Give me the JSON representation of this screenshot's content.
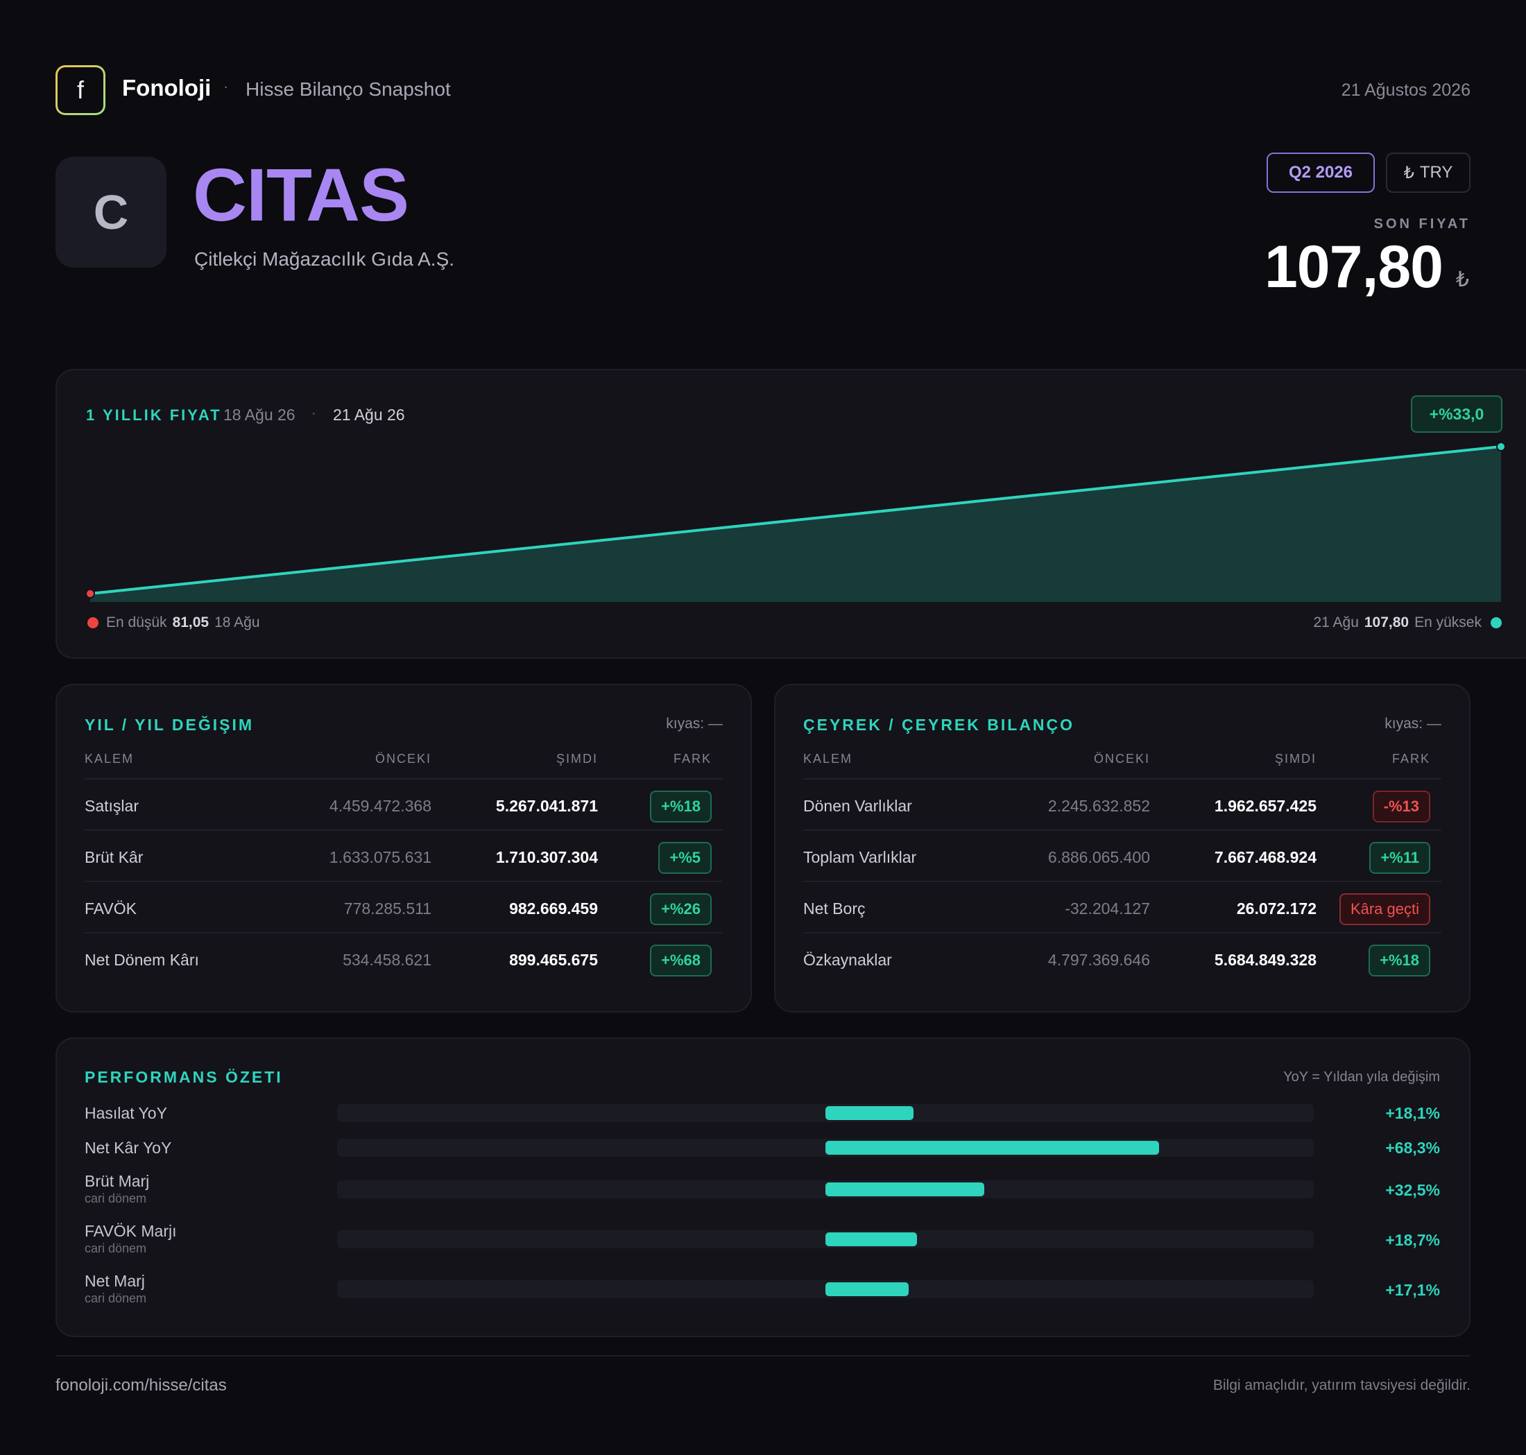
{
  "header": {
    "logo_letter": "f",
    "brand": "Fonoloji",
    "separator": "·",
    "subtitle": "Hisse Bilanço Snapshot",
    "date": "21 Ağustos 2026"
  },
  "stock": {
    "avatar_letter": "C",
    "ticker": "CITAS",
    "company": "Çitlekçi Mağazacılık Gıda A.Ş.",
    "period": "Q2 2026",
    "currency_symbol": "₺",
    "currency": "TRY",
    "last_price_label": "SON FIYAT",
    "last_price": "107,80",
    "last_price_currency": "₺"
  },
  "price_chart": {
    "title": "1 YILLIK FIYAT",
    "from": "18 Ağu 26",
    "dot": "·",
    "to": "21 Ağu 26",
    "change": "+%33,0",
    "low_label": "En düşük",
    "low_value": "81,05",
    "low_date": "18 Ağu",
    "high_date": "21 Ağu",
    "high_value": "107,80",
    "high_label": "En yüksek",
    "colors": {
      "line": "#2fd4bd",
      "area": "#183a39",
      "low": "#ef4444",
      "high": "#2fd4bd"
    }
  },
  "chart_data": {
    "type": "area",
    "x": [
      "18 Ağu 26",
      "21 Ağu 26"
    ],
    "series": [
      {
        "values": [
          81.05,
          107.8
        ]
      }
    ]
  },
  "yoy": {
    "title": "YIL / YIL DEĞIŞIM",
    "compare_label": "kıyas:",
    "compare_value": "—",
    "columns": [
      "KALEM",
      "ÖNCEKI",
      "ŞIMDI",
      "FARK"
    ],
    "rows": [
      {
        "name": "Satışlar",
        "prev": "4.459.472.368",
        "now": "5.267.041.871",
        "diff": "+%18"
      },
      {
        "name": "Brüt Kâr",
        "prev": "1.633.075.631",
        "now": "1.710.307.304",
        "diff": "+%5"
      },
      {
        "name": "FAVÖK",
        "prev": "778.285.511",
        "now": "982.669.459",
        "diff": "+%26"
      },
      {
        "name": "Net Dönem Kârı",
        "prev": "534.458.621",
        "now": "899.465.675",
        "diff": "+%68"
      }
    ]
  },
  "qoq": {
    "title": "ÇEYREK / ÇEYREK BILANÇO",
    "compare_label": "kıyas:",
    "compare_value": "—",
    "columns": [
      "KALEM",
      "ÖNCEKI",
      "ŞIMDI",
      "FARK"
    ],
    "rows": [
      {
        "name": "Dönen Varlıklar",
        "prev": "2.245.632.852",
        "now": "1.962.657.425",
        "diff": "-%13"
      },
      {
        "name": "Toplam Varlıklar",
        "prev": "6.886.065.400",
        "now": "7.667.468.924",
        "diff": "+%11"
      },
      {
        "name": "Net Borç",
        "prev": "-32.204.127",
        "now": "26.072.172",
        "diff": "Kâra geçti"
      },
      {
        "name": "Özkaynaklar",
        "prev": "4.797.369.646",
        "now": "5.684.849.328",
        "diff": "+%18"
      }
    ]
  },
  "performance": {
    "title": "PERFORMANS ÖZETI",
    "note": "YoY = Yıldan yıla değişim",
    "rows": [
      {
        "label": "Hasılat YoY",
        "sub": "",
        "value": "+18,1%",
        "pct": 18.1
      },
      {
        "label": "Net Kâr YoY",
        "sub": "",
        "value": "+68,3%",
        "pct": 68.3
      },
      {
        "label": "Brüt Marj",
        "sub": "cari dönem",
        "value": "+32,5%",
        "pct": 32.5
      },
      {
        "label": "FAVÖK Marjı",
        "sub": "cari dönem",
        "value": "+18,7%",
        "pct": 18.7
      },
      {
        "label": "Net Marj",
        "sub": "cari dönem",
        "value": "+17,1%",
        "pct": 17.1
      }
    ]
  },
  "footer": {
    "url": "fonoloji.com/hisse/citas",
    "disclaimer": "Bilgi amaçlıdır, yatırım tavsiyesi değildir."
  }
}
